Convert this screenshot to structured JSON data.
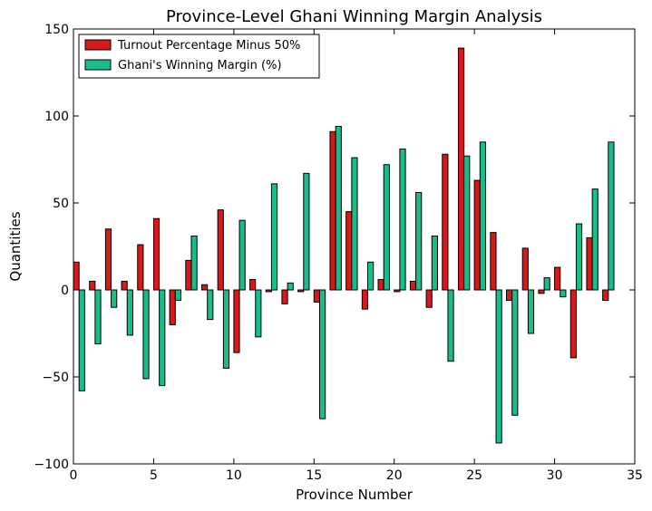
{
  "chart_data": {
    "type": "bar",
    "title": "Province-Level Ghani Winning Margin Analysis",
    "xlabel": "Province Number",
    "ylabel": "Quantities",
    "xlim": [
      0,
      35
    ],
    "ylim": [
      -100,
      150
    ],
    "xticks": [
      "0",
      "5",
      "10",
      "15",
      "20",
      "25",
      "30",
      "35"
    ],
    "yticks": [
      "−100",
      "−50",
      "0",
      "50",
      "100",
      "150"
    ],
    "legend_position": "top-left",
    "grid": false,
    "x": [
      0,
      1,
      2,
      3,
      4,
      5,
      6,
      7,
      8,
      9,
      10,
      11,
      12,
      13,
      14,
      15,
      16,
      17,
      18,
      19,
      20,
      21,
      22,
      23,
      24,
      25,
      26,
      27,
      28,
      29,
      30,
      31,
      32,
      33
    ],
    "series": [
      {
        "name": "Turnout Percentage Minus 50%",
        "color": "#d7191c",
        "values": [
          16,
          5,
          35,
          5,
          26,
          41,
          -20,
          17,
          3,
          46,
          -36,
          6,
          -1,
          -8,
          -1,
          -7,
          91,
          45,
          -11,
          6,
          -1,
          5,
          -10,
          78,
          139,
          63,
          33,
          -6,
          24,
          -2,
          13,
          -39,
          30,
          -6
        ]
      },
      {
        "name": "Ghani's Winning Margin (%)",
        "color": "#1abc8c",
        "values": [
          -58,
          -31,
          -10,
          -26,
          -51,
          -55,
          -6,
          31,
          -17,
          -45,
          40,
          -27,
          61,
          4,
          67,
          -74,
          94,
          76,
          16,
          72,
          81,
          56,
          31,
          -41,
          77,
          85,
          -88,
          -72,
          -25,
          7,
          -4,
          38,
          58,
          85
        ]
      }
    ]
  }
}
